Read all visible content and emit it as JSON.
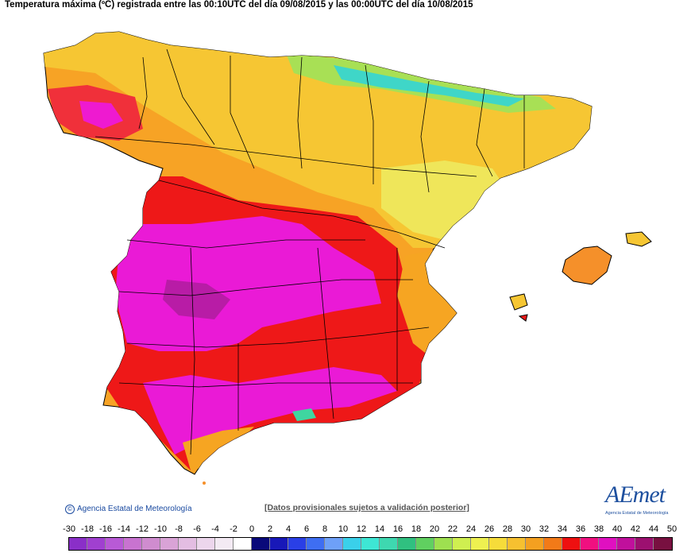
{
  "title": "Temperatura máxima (ºC) registrada entre las 00:10UTC del día 09/08/2015 y las 00:00UTC del día 10/08/2015",
  "credit": "Agencia Estatal de Meteorología",
  "notice": "[Datos provisionales sujetos a validación posterior]",
  "logo": {
    "text": "AEmet",
    "sub": "Agencia Estatal de Meteorología"
  },
  "legend": {
    "labels": [
      "-30",
      "-18",
      "-16",
      "-14",
      "-12",
      "-10",
      "-8",
      "-6",
      "-4",
      "-2",
      "0",
      "2",
      "4",
      "6",
      "8",
      "10",
      "12",
      "14",
      "16",
      "18",
      "20",
      "22",
      "24",
      "26",
      "28",
      "30",
      "32",
      "34",
      "36",
      "38",
      "40",
      "42",
      "44",
      "50"
    ],
    "colors": [
      "#8a2fc8",
      "#a040d0",
      "#b85ad6",
      "#c873d0",
      "#cf8ccf",
      "#d9a3d6",
      "#e3bde2",
      "#ecd6ec",
      "#f3eaf3",
      "#ffffff",
      "#0a0a7a",
      "#1818b8",
      "#2a3fe6",
      "#3e6ef2",
      "#6ea0f8",
      "#3ad0ea",
      "#3ee6d4",
      "#3ed8b0",
      "#30c080",
      "#60d060",
      "#9ee050",
      "#cfef50",
      "#eef050",
      "#f6dc3a",
      "#f6c030",
      "#f4a020",
      "#f27a18",
      "#ee1010",
      "#f01080",
      "#e010c0",
      "#c0109c",
      "#9c1070",
      "#781040"
    ]
  }
}
